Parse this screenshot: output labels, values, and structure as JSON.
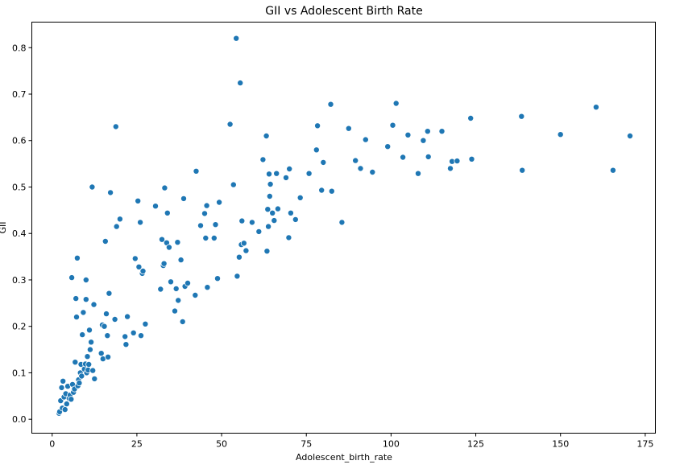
{
  "chart_data": {
    "type": "scatter",
    "title": "GII vs Adolescent Birth Rate",
    "xlabel": "Adolescent_birth_rate",
    "ylabel": "GII",
    "xlim": [
      -6,
      178
    ],
    "ylim": [
      -0.03,
      0.855
    ],
    "xticks": [
      0,
      25,
      50,
      75,
      100,
      125,
      150,
      175
    ],
    "yticks": [
      0.0,
      0.1,
      0.2,
      0.3,
      0.4,
      0.5,
      0.6,
      0.7,
      0.8
    ],
    "grid": false,
    "color": "#1f77b4",
    "points": [
      [
        2.0,
        0.013
      ],
      [
        2.2,
        0.016
      ],
      [
        2.5,
        0.04
      ],
      [
        2.8,
        0.068
      ],
      [
        3.0,
        0.024
      ],
      [
        3.2,
        0.082
      ],
      [
        3.5,
        0.048
      ],
      [
        3.8,
        0.021
      ],
      [
        4.0,
        0.055
      ],
      [
        4.3,
        0.033
      ],
      [
        4.6,
        0.071
      ],
      [
        5.0,
        0.045
      ],
      [
        5.3,
        0.052
      ],
      [
        5.6,
        0.043
      ],
      [
        5.8,
        0.305
      ],
      [
        6.0,
        0.075
      ],
      [
        6.3,
        0.058
      ],
      [
        6.6,
        0.065
      ],
      [
        6.8,
        0.123
      ],
      [
        7.0,
        0.26
      ],
      [
        7.2,
        0.22
      ],
      [
        7.4,
        0.347
      ],
      [
        7.6,
        0.072
      ],
      [
        7.8,
        0.085
      ],
      [
        8.0,
        0.078
      ],
      [
        8.3,
        0.1
      ],
      [
        8.5,
        0.118
      ],
      [
        8.7,
        0.093
      ],
      [
        8.9,
        0.182
      ],
      [
        9.2,
        0.23
      ],
      [
        9.5,
        0.108
      ],
      [
        9.8,
        0.119
      ],
      [
        10.0,
        0.3
      ],
      [
        10.0,
        0.258
      ],
      [
        10.2,
        0.1
      ],
      [
        10.4,
        0.135
      ],
      [
        10.6,
        0.106
      ],
      [
        10.8,
        0.118
      ],
      [
        11.0,
        0.192
      ],
      [
        11.2,
        0.15
      ],
      [
        11.5,
        0.166
      ],
      [
        11.8,
        0.5
      ],
      [
        12.0,
        0.105
      ],
      [
        12.3,
        0.247
      ],
      [
        12.5,
        0.087
      ],
      [
        14.5,
        0.142
      ],
      [
        14.8,
        0.203
      ],
      [
        15.0,
        0.13
      ],
      [
        15.4,
        0.2
      ],
      [
        15.7,
        0.383
      ],
      [
        16.0,
        0.227
      ],
      [
        16.3,
        0.18
      ],
      [
        16.5,
        0.134
      ],
      [
        16.8,
        0.271
      ],
      [
        17.2,
        0.488
      ],
      [
        18.5,
        0.215
      ],
      [
        18.8,
        0.63
      ],
      [
        19.0,
        0.415
      ],
      [
        20.0,
        0.431
      ],
      [
        21.5,
        0.178
      ],
      [
        21.8,
        0.161
      ],
      [
        22.2,
        0.221
      ],
      [
        24.0,
        0.186
      ],
      [
        24.5,
        0.346
      ],
      [
        25.3,
        0.47
      ],
      [
        25.6,
        0.328
      ],
      [
        26.0,
        0.424
      ],
      [
        26.2,
        0.18
      ],
      [
        26.6,
        0.314
      ],
      [
        26.8,
        0.319
      ],
      [
        27.5,
        0.205
      ],
      [
        30.5,
        0.459
      ],
      [
        32.0,
        0.28
      ],
      [
        32.4,
        0.387
      ],
      [
        32.8,
        0.331
      ],
      [
        33.0,
        0.335
      ],
      [
        33.2,
        0.498
      ],
      [
        33.8,
        0.38
      ],
      [
        34.0,
        0.444
      ],
      [
        34.5,
        0.37
      ],
      [
        35.0,
        0.296
      ],
      [
        36.2,
        0.233
      ],
      [
        36.6,
        0.281
      ],
      [
        37.0,
        0.381
      ],
      [
        37.2,
        0.256
      ],
      [
        38.0,
        0.343
      ],
      [
        38.5,
        0.21
      ],
      [
        38.8,
        0.475
      ],
      [
        39.2,
        0.286
      ],
      [
        40.0,
        0.293
      ],
      [
        42.2,
        0.267
      ],
      [
        42.5,
        0.534
      ],
      [
        43.8,
        0.417
      ],
      [
        45.0,
        0.443
      ],
      [
        45.3,
        0.39
      ],
      [
        45.6,
        0.46
      ],
      [
        45.8,
        0.284
      ],
      [
        47.8,
        0.39
      ],
      [
        48.2,
        0.419
      ],
      [
        48.8,
        0.303
      ],
      [
        49.3,
        0.467
      ],
      [
        52.5,
        0.635
      ],
      [
        53.5,
        0.505
      ],
      [
        54.3,
        0.82
      ],
      [
        54.6,
        0.308
      ],
      [
        55.2,
        0.349
      ],
      [
        55.5,
        0.724
      ],
      [
        55.8,
        0.376
      ],
      [
        56.0,
        0.427
      ],
      [
        56.6,
        0.379
      ],
      [
        57.2,
        0.363
      ],
      [
        59.0,
        0.424
      ],
      [
        61.0,
        0.404
      ],
      [
        62.2,
        0.559
      ],
      [
        63.2,
        0.61
      ],
      [
        63.4,
        0.362
      ],
      [
        63.6,
        0.452
      ],
      [
        63.8,
        0.415
      ],
      [
        64.0,
        0.528
      ],
      [
        64.2,
        0.48
      ],
      [
        64.4,
        0.506
      ],
      [
        65.0,
        0.444
      ],
      [
        65.5,
        0.428
      ],
      [
        66.2,
        0.529
      ],
      [
        66.6,
        0.453
      ],
      [
        69.0,
        0.52
      ],
      [
        69.8,
        0.391
      ],
      [
        70.0,
        0.539
      ],
      [
        70.4,
        0.444
      ],
      [
        71.8,
        0.43
      ],
      [
        73.2,
        0.477
      ],
      [
        75.8,
        0.529
      ],
      [
        78.0,
        0.58
      ],
      [
        78.3,
        0.632
      ],
      [
        79.5,
        0.493
      ],
      [
        80.0,
        0.553
      ],
      [
        82.2,
        0.678
      ],
      [
        82.5,
        0.491
      ],
      [
        85.5,
        0.424
      ],
      [
        87.5,
        0.626
      ],
      [
        89.5,
        0.557
      ],
      [
        91.0,
        0.54
      ],
      [
        92.5,
        0.602
      ],
      [
        94.5,
        0.532
      ],
      [
        99.0,
        0.587
      ],
      [
        100.5,
        0.633
      ],
      [
        101.5,
        0.68
      ],
      [
        103.5,
        0.564
      ],
      [
        105.0,
        0.612
      ],
      [
        108.0,
        0.529
      ],
      [
        109.5,
        0.6
      ],
      [
        110.8,
        0.62
      ],
      [
        111.0,
        0.565
      ],
      [
        115.0,
        0.62
      ],
      [
        117.5,
        0.54
      ],
      [
        118.0,
        0.555
      ],
      [
        119.5,
        0.556
      ],
      [
        123.5,
        0.648
      ],
      [
        123.8,
        0.56
      ],
      [
        138.5,
        0.652
      ],
      [
        138.7,
        0.536
      ],
      [
        150.0,
        0.613
      ],
      [
        160.5,
        0.672
      ],
      [
        165.5,
        0.536
      ],
      [
        170.5,
        0.61
      ]
    ]
  }
}
